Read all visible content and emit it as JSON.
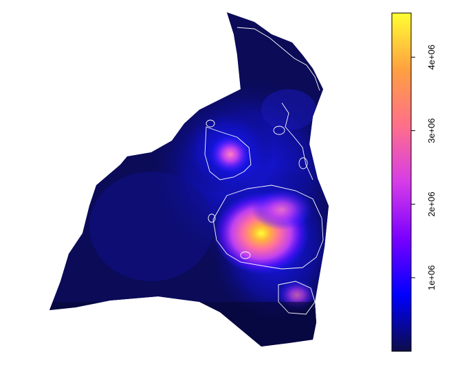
{
  "colorbar": {
    "min_value": 0,
    "max_value": 4600000,
    "gradient_colors": [
      "#0d0d4a",
      "#0000ff",
      "#7a00ff",
      "#d63ce8",
      "#ff6f8a",
      "#ffa040",
      "#ffff33"
    ],
    "ticks": [
      {
        "value": 1000000,
        "label": "1e+06"
      },
      {
        "value": 2000000,
        "label": "2e+06"
      },
      {
        "value": 3000000,
        "label": "3e+06"
      },
      {
        "value": 4000000,
        "label": "4e+06"
      }
    ]
  },
  "map": {
    "background_color": "#0b0b58",
    "contour_color": "#ffffff"
  }
}
